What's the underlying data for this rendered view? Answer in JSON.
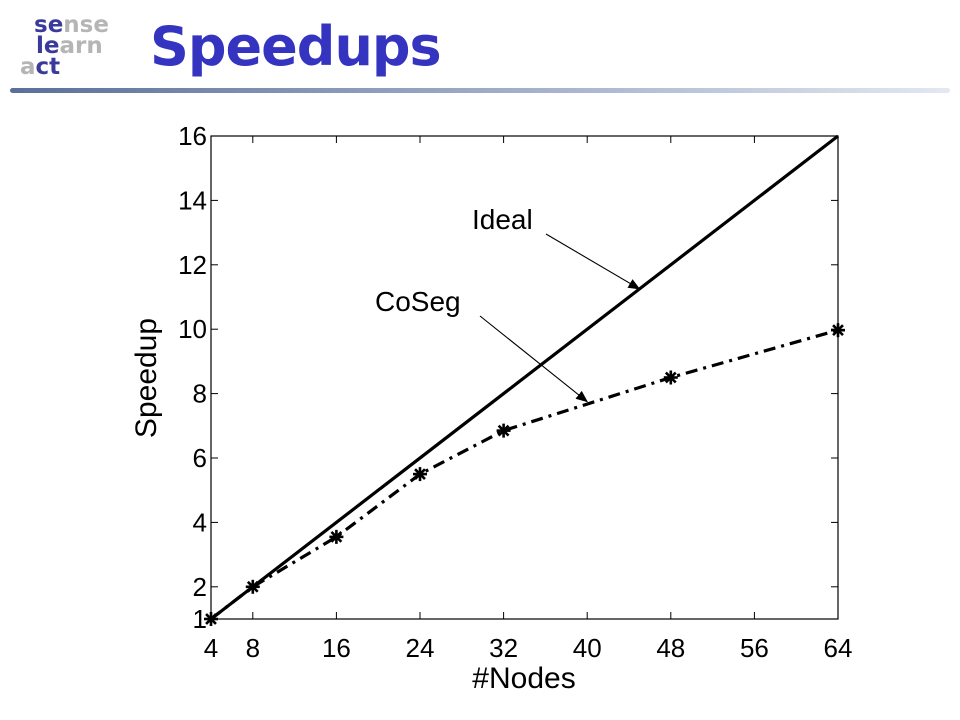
{
  "logo": {
    "line1": [
      {
        "text": "se",
        "color": "#3a3a9c"
      },
      {
        "text": "nse",
        "color": "#b5b5b5"
      }
    ],
    "line2": [
      {
        "text": "le",
        "color": "#3a3a9c"
      },
      {
        "text": "arn",
        "color": "#b5b5b5"
      }
    ],
    "line3": [
      {
        "text": "a",
        "color": "#b5b5b5"
      },
      {
        "text": "ct",
        "color": "#3a3a9c"
      }
    ]
  },
  "title": "Speedups",
  "chart_data": {
    "type": "line",
    "xlabel": "#Nodes",
    "ylabel": "Speedup",
    "xlim": [
      4,
      64
    ],
    "ylim": [
      1,
      16
    ],
    "xticks": [
      4,
      8,
      16,
      24,
      32,
      40,
      48,
      56,
      64
    ],
    "yticks": [
      1,
      2,
      4,
      6,
      8,
      10,
      12,
      14,
      16
    ],
    "series": [
      {
        "name": "Ideal",
        "style": "solid",
        "markers": false,
        "x": [
          4,
          64
        ],
        "y": [
          1,
          16
        ]
      },
      {
        "name": "CoSeg",
        "style": "dash-dot",
        "markers": true,
        "x": [
          4,
          8,
          16,
          24,
          32,
          48,
          64
        ],
        "y": [
          1,
          2,
          3.55,
          5.5,
          6.85,
          8.5,
          9.97
        ]
      }
    ],
    "annotations": [
      {
        "text": "Ideal",
        "series": "Ideal",
        "point": [
          45,
          11.25
        ]
      },
      {
        "text": "CoSeg",
        "series": "CoSeg",
        "point": [
          40,
          7.75
        ]
      }
    ],
    "grid": false
  }
}
